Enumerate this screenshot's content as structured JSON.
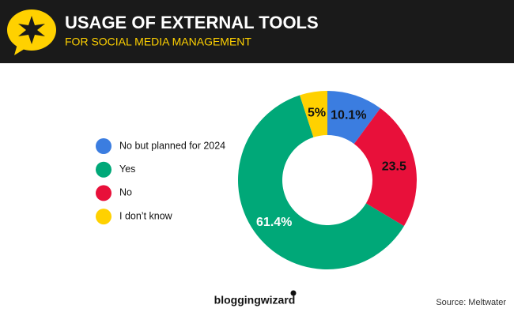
{
  "chart_data": {
    "type": "donut",
    "title": "USAGE OF EXTERNAL TOOLS",
    "subtitle": "FOR SOCIAL MEDIA MANAGEMENT",
    "categories": [
      "No but planned for 2024",
      "Yes",
      "No",
      "I don’t know"
    ],
    "values": [
      10.1,
      61.4,
      23.5,
      5
    ],
    "value_labels": [
      "10.1%",
      "61.4%",
      "23.5",
      "5%"
    ],
    "colors": [
      "#3b7de0",
      "#00a878",
      "#e8103a",
      "#ffd100"
    ],
    "value_label_colors": [
      "#111111",
      "#ffffff",
      "#111111",
      "#111111"
    ],
    "legend": "left",
    "brand": "bloggingwizard",
    "source": "Source: Meltwater"
  }
}
